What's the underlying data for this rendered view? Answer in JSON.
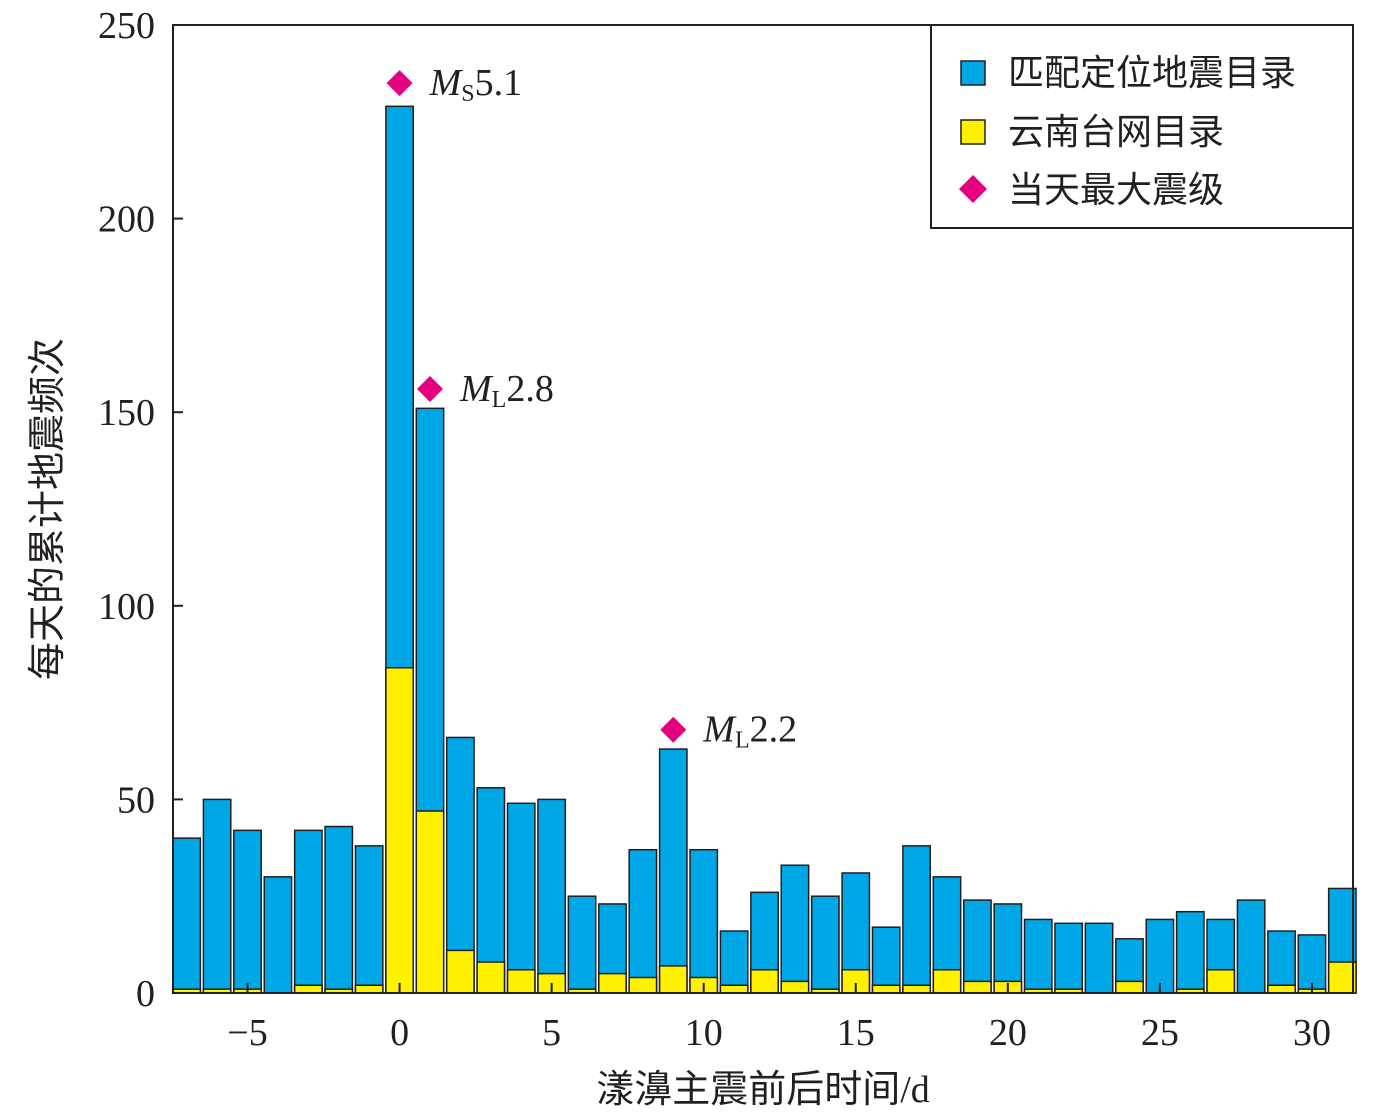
{
  "chart_data": {
    "type": "bar",
    "xlabel": "漾濞主震前后时间/d",
    "ylabel": "每天的累计地震频次",
    "xlim": [
      -7.45,
      31.35
    ],
    "ylim": [
      0,
      250
    ],
    "xticks": [
      -5,
      0,
      5,
      10,
      15,
      20,
      25,
      30
    ],
    "xtick_labels": [
      "−5",
      "0",
      "5",
      "10",
      "15",
      "20",
      "25",
      "30"
    ],
    "yticks": [
      0,
      50,
      100,
      150,
      200,
      250
    ],
    "ytick_labels": [
      "0",
      "50",
      "100",
      "150",
      "200",
      "250"
    ],
    "grid": false,
    "legend_position": "top-right",
    "x": [
      -7,
      -6,
      -5,
      -4,
      -3,
      -2,
      -1,
      0,
      1,
      2,
      3,
      4,
      5,
      6,
      7,
      8,
      9,
      10,
      11,
      12,
      13,
      14,
      15,
      16,
      17,
      18,
      19,
      20,
      21,
      22,
      23,
      24,
      25,
      26,
      27,
      28,
      29,
      30,
      31
    ],
    "series": [
      {
        "name": "匹配定位地震目录",
        "color": "#00a7e6",
        "values": [
          40,
          50,
          42,
          30,
          42,
          43,
          38,
          229,
          151,
          66,
          53,
          49,
          50,
          25,
          23,
          37,
          63,
          37,
          16,
          26,
          33,
          25,
          31,
          17,
          38,
          30,
          24,
          23,
          19,
          18,
          18,
          14,
          19,
          21,
          19,
          24,
          16,
          15,
          27
        ]
      },
      {
        "name": "云南台网目录",
        "color": "#fff100",
        "values": [
          1,
          1,
          1,
          0,
          2,
          1,
          2,
          84,
          47,
          11,
          8,
          6,
          5,
          1,
          5,
          4,
          7,
          4,
          2,
          6,
          3,
          1,
          6,
          2,
          2,
          6,
          3,
          3,
          1,
          1,
          0,
          3,
          0,
          1,
          6,
          0,
          2,
          1,
          8
        ]
      }
    ],
    "markers": {
      "name": "当天最大震级",
      "color": "#e4007f",
      "points": [
        {
          "x": 0,
          "y": 235,
          "mag_type": "M",
          "sub": "S",
          "value": "5.1"
        },
        {
          "x": 1,
          "y": 156,
          "mag_type": "M",
          "sub": "L",
          "value": "2.8"
        },
        {
          "x": 9,
          "y": 68,
          "mag_type": "M",
          "sub": "L",
          "value": "2.2"
        }
      ]
    }
  }
}
